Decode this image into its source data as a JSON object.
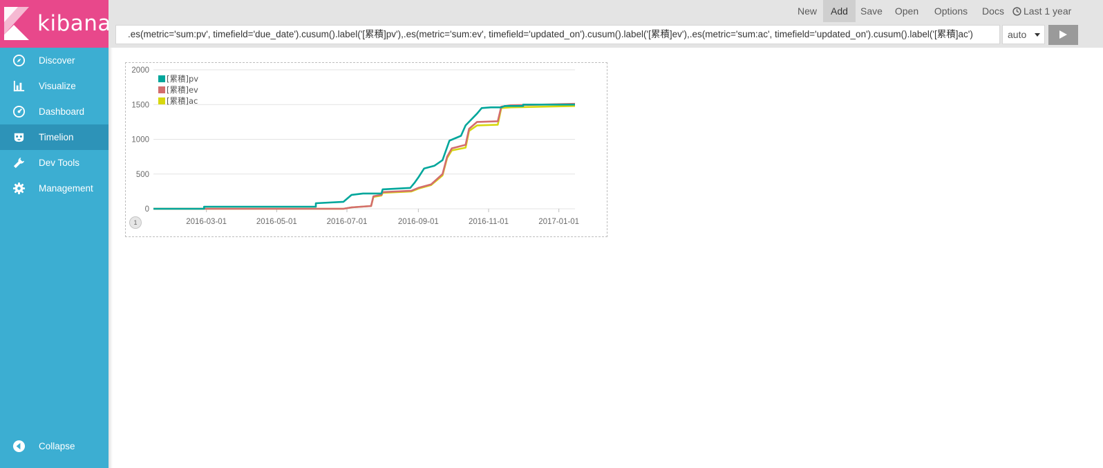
{
  "app": {
    "logo_text": "kibana",
    "brand_color": "#e8488b",
    "sidebar_color": "#3caed2"
  },
  "sidebar": {
    "items": [
      {
        "label": "Discover",
        "icon": "compass-icon"
      },
      {
        "label": "Visualize",
        "icon": "bar-chart-icon"
      },
      {
        "label": "Dashboard",
        "icon": "gauge-icon"
      },
      {
        "label": "Timelion",
        "icon": "timelion-mask-icon",
        "active": true
      },
      {
        "label": "Dev Tools",
        "icon": "wrench-icon"
      },
      {
        "label": "Management",
        "icon": "gear-icon"
      }
    ],
    "collapse_label": "Collapse"
  },
  "topbar": {
    "menu": [
      {
        "label": "New"
      },
      {
        "label": "Add",
        "active": true
      },
      {
        "label": "Save"
      },
      {
        "label": "Open"
      },
      {
        "label": "Options"
      },
      {
        "label": "Docs"
      }
    ],
    "time_range": "Last 1 year",
    "time_icon": "clock-icon"
  },
  "query": {
    "expression": ".es(metric='sum:pv', timefield='due_date').cusum().label('[累積]pv'),.es(metric='sum:ev', timefield='updated_on').cusum().label('[累積]ev'),.es(metric='sum:ac', timefield='updated_on').cusum().label('[累積]ac')",
    "interval": "auto",
    "run_icon": "play-icon"
  },
  "panel": {
    "index": "1"
  },
  "chart_data": {
    "type": "line",
    "title": "",
    "xlabel": "",
    "ylabel": "",
    "ylim": [
      0,
      2000
    ],
    "yticks": [
      "0",
      "500",
      "1000",
      "1500",
      "2000"
    ],
    "xticks": [
      "2016-03-01",
      "2016-05-01",
      "2016-07-01",
      "2016-09-01",
      "2016-11-01",
      "2017-01-01"
    ],
    "xlim": [
      "2016-01-15",
      "2017-01-15"
    ],
    "grid": true,
    "legend_position": "top-left",
    "series": [
      {
        "name": "[累積]pv",
        "color": "#00a69b",
        "points": [
          [
            "2016-01-15",
            0
          ],
          [
            "2016-02-28",
            0
          ],
          [
            "2016-02-28",
            30
          ],
          [
            "2016-06-04",
            30
          ],
          [
            "2016-06-04",
            80
          ],
          [
            "2016-06-28",
            100
          ],
          [
            "2016-07-05",
            200
          ],
          [
            "2016-07-15",
            220
          ],
          [
            "2016-07-31",
            220
          ],
          [
            "2016-08-01",
            280
          ],
          [
            "2016-08-25",
            300
          ],
          [
            "2016-08-29",
            380
          ],
          [
            "2016-09-01",
            450
          ],
          [
            "2016-09-06",
            580
          ],
          [
            "2016-09-15",
            620
          ],
          [
            "2016-09-22",
            700
          ],
          [
            "2016-09-28",
            980
          ],
          [
            "2016-10-08",
            1050
          ],
          [
            "2016-10-12",
            1200
          ],
          [
            "2016-10-22",
            1370
          ],
          [
            "2016-10-26",
            1450
          ],
          [
            "2016-11-03",
            1460
          ],
          [
            "2016-11-12",
            1460
          ],
          [
            "2016-11-15",
            1480
          ],
          [
            "2016-12-01",
            1480
          ],
          [
            "2016-12-01",
            1500
          ],
          [
            "2017-01-15",
            1500
          ]
        ]
      },
      {
        "name": "[累積]ev",
        "color": "#d36d6d",
        "points": [
          [
            "2016-01-15",
            0
          ],
          [
            "2016-06-28",
            0
          ],
          [
            "2016-07-05",
            20
          ],
          [
            "2016-07-22",
            40
          ],
          [
            "2016-07-24",
            180
          ],
          [
            "2016-07-31",
            200
          ],
          [
            "2016-08-01",
            240
          ],
          [
            "2016-08-26",
            260
          ],
          [
            "2016-09-01",
            300
          ],
          [
            "2016-09-12",
            350
          ],
          [
            "2016-09-22",
            500
          ],
          [
            "2016-09-26",
            750
          ],
          [
            "2016-09-30",
            870
          ],
          [
            "2016-10-12",
            920
          ],
          [
            "2016-10-15",
            1150
          ],
          [
            "2016-10-22",
            1250
          ],
          [
            "2016-11-09",
            1260
          ],
          [
            "2016-11-12",
            1470
          ],
          [
            "2016-11-20",
            1490
          ],
          [
            "2017-01-15",
            1510
          ]
        ]
      },
      {
        "name": "[累積]ac",
        "color": "#d7d70f",
        "points": [
          [
            "2016-01-15",
            0
          ],
          [
            "2016-06-28",
            0
          ],
          [
            "2016-07-05",
            20
          ],
          [
            "2016-07-22",
            40
          ],
          [
            "2016-07-24",
            170
          ],
          [
            "2016-07-31",
            190
          ],
          [
            "2016-08-01",
            230
          ],
          [
            "2016-08-26",
            250
          ],
          [
            "2016-09-01",
            290
          ],
          [
            "2016-09-12",
            340
          ],
          [
            "2016-09-22",
            480
          ],
          [
            "2016-09-26",
            730
          ],
          [
            "2016-09-30",
            840
          ],
          [
            "2016-10-12",
            880
          ],
          [
            "2016-10-15",
            1120
          ],
          [
            "2016-10-22",
            1200
          ],
          [
            "2016-11-09",
            1210
          ],
          [
            "2016-11-12",
            1450
          ],
          [
            "2016-11-20",
            1460
          ],
          [
            "2017-01-15",
            1480
          ]
        ]
      }
    ]
  }
}
